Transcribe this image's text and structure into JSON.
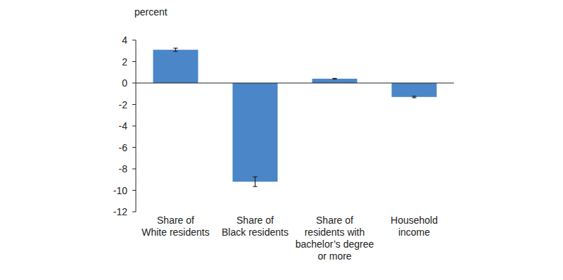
{
  "chart_data": {
    "type": "bar",
    "y_label": "percent",
    "categories": [
      "Share of\nWhite residents",
      "Share of\nBlack residents",
      "Share of\nresidents with\nbachelor’s degree\nor more",
      "Household\nincome"
    ],
    "values": [
      3.1,
      -9.2,
      0.4,
      -1.3
    ],
    "errors": [
      0.15,
      0.45,
      0.03,
      0.07
    ],
    "color": "#4a86c8",
    "ylim": [
      -12,
      4
    ],
    "yticks": [
      -12,
      -10,
      -8,
      -6,
      -4,
      -2,
      0,
      2,
      4
    ],
    "grid": false
  }
}
